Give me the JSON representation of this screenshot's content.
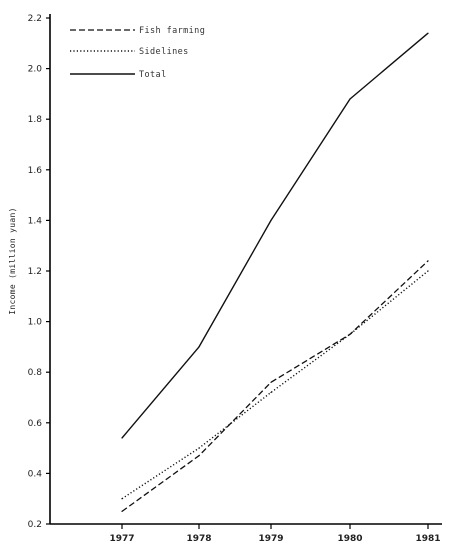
{
  "chart_data": {
    "type": "line",
    "x": [
      "1977",
      "1978",
      "1979",
      "1980",
      "1981"
    ],
    "series": [
      {
        "name": "Fish farming",
        "values": [
          0.25,
          0.47,
          0.76,
          0.95,
          1.24
        ],
        "style": "dashed"
      },
      {
        "name": "Sidelines",
        "values": [
          0.3,
          0.5,
          0.72,
          0.95,
          1.2
        ],
        "style": "dotted"
      },
      {
        "name": "Total",
        "values": [
          0.54,
          0.9,
          1.4,
          1.88,
          2.14
        ],
        "style": "solid"
      }
    ],
    "ylabel": "Income (million yuan)",
    "xlabel": "",
    "ylim": [
      0.2,
      2.2
    ],
    "yticks": [
      "0.2",
      "0.4",
      "0.6",
      "0.8",
      "1.0",
      "1.2",
      "1.4",
      "1.6",
      "1.8",
      "2.0",
      "2.2"
    ],
    "ytick_values": [
      0.2,
      0.4,
      0.6,
      0.8,
      1.0,
      1.2,
      1.4,
      1.6,
      1.8,
      2.0,
      2.2
    ],
    "grid": false,
    "legend_position": "top-left",
    "colors": {
      "line": "#111111",
      "background": "#ffffff"
    }
  }
}
